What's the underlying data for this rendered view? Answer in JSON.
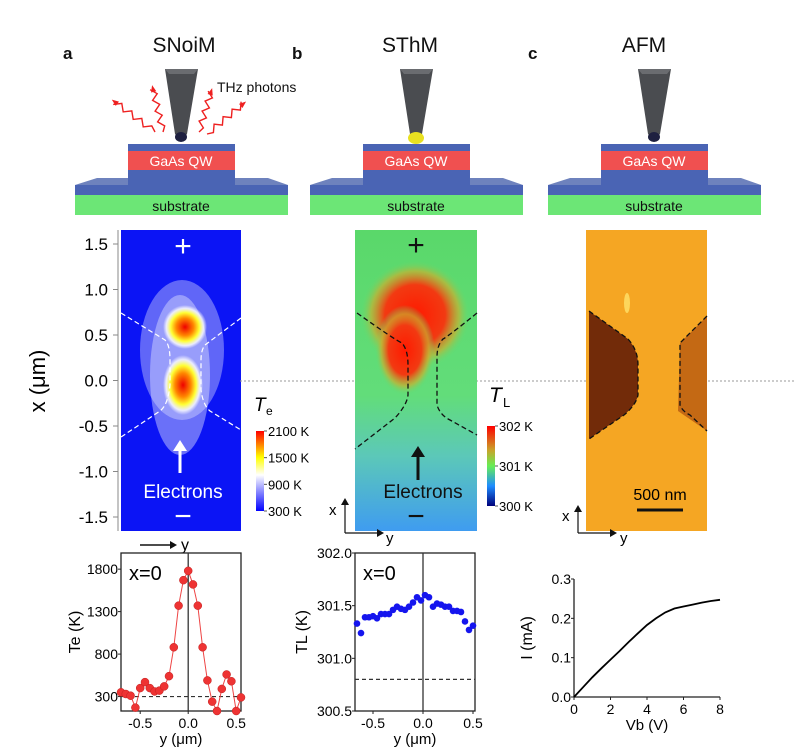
{
  "panels": [
    {
      "letter": "a",
      "title": "SNoiM",
      "photon_label": "THz photons",
      "qw_label": "GaAs QW",
      "substrate_label": "substrate",
      "tip_type": "plain"
    },
    {
      "letter": "b",
      "title": "SThM",
      "qw_label": "GaAs QW",
      "substrate_label": "substrate",
      "tip_type": "thermal"
    },
    {
      "letter": "c",
      "title": "AFM",
      "qw_label": "GaAs QW",
      "substrate_label": "substrate",
      "tip_type": "plain"
    }
  ],
  "maps": {
    "yaxis_label": "x (μm)",
    "yaxis_ticks": [
      "1.5",
      "1.0",
      "0.5",
      "0.0",
      "-0.5",
      "-1.0",
      "-1.5"
    ],
    "yaxis_tick_values": [
      1.5,
      1.0,
      0.5,
      0.0,
      -0.5,
      -1.0,
      -1.5
    ],
    "plus_sign": "+",
    "minus_sign": "−",
    "electrons_label": "Electrons",
    "axis_x": "x",
    "axis_y": "y",
    "te_colorbar": {
      "label": "T",
      "sub": "e",
      "ticks": [
        "2100 K",
        "1500 K",
        "900 K",
        "300 K"
      ],
      "colors": [
        "#ff0000",
        "#ffff00",
        "#ffffff",
        "#0000ff"
      ]
    },
    "tl_colorbar": {
      "label": "T",
      "sub": "L",
      "ticks": [
        "302 K",
        "301 K",
        "300 K"
      ],
      "colors": [
        "#ff0000",
        "#66ee55",
        "#1e5cff",
        "#00007a"
      ]
    },
    "scalebar_label": "500 nm",
    "colors": {
      "snoim_bg": "#0b14f5",
      "sthm_bg": "#54d67a",
      "afm_bg": "#f5a623"
    }
  },
  "chart_data": [
    {
      "type": "line",
      "title": "x=0",
      "xlabel": "y (μm)",
      "ylabel": "Te (K)",
      "xlim": [
        -0.7,
        0.55
      ],
      "ylim": [
        130,
        1990
      ],
      "xticks": [
        -0.5,
        0.0,
        0.5
      ],
      "xtick_labels": [
        "-0.5",
        "0.0",
        "0.5"
      ],
      "yticks": [
        300,
        800,
        1300,
        1800
      ],
      "ytick_labels": [
        "300",
        "800",
        "1300",
        "1800"
      ],
      "reference_line": 300,
      "marker_color": "#ee3333",
      "x": [
        -0.7,
        -0.65,
        -0.6,
        -0.55,
        -0.5,
        -0.45,
        -0.4,
        -0.35,
        -0.3,
        -0.25,
        -0.2,
        -0.15,
        -0.1,
        -0.05,
        0.0,
        0.05,
        0.1,
        0.15,
        0.2,
        0.25,
        0.3,
        0.35,
        0.4,
        0.45,
        0.5,
        0.55
      ],
      "y": [
        350,
        330,
        310,
        170,
        400,
        470,
        400,
        360,
        370,
        420,
        540,
        880,
        1370,
        1670,
        1780,
        1620,
        1370,
        880,
        490,
        240,
        130,
        390,
        560,
        480,
        60,
        290
      ]
    },
    {
      "type": "scatter",
      "title": "x=0",
      "xlabel": "y (μm)",
      "ylabel": "TL (K)",
      "xlim": [
        -0.68,
        0.52
      ],
      "ylim": [
        300.5,
        302.0
      ],
      "xticks": [
        -0.5,
        0.0,
        0.5
      ],
      "xtick_labels": [
        "-0.5",
        "0.0",
        "0.5"
      ],
      "yticks": [
        300.5,
        301.0,
        301.5,
        302.0
      ],
      "ytick_labels": [
        "300.5",
        "301.0",
        "301.5",
        "302.0"
      ],
      "reference_line": 300.8,
      "marker_color": "#1515ee",
      "x": [
        -0.66,
        -0.62,
        -0.58,
        -0.54,
        -0.5,
        -0.46,
        -0.42,
        -0.38,
        -0.34,
        -0.3,
        -0.26,
        -0.22,
        -0.18,
        -0.14,
        -0.1,
        -0.06,
        -0.02,
        0.02,
        0.06,
        0.1,
        0.14,
        0.18,
        0.22,
        0.26,
        0.3,
        0.34,
        0.38,
        0.42,
        0.46,
        0.5
      ],
      "y": [
        301.33,
        301.24,
        301.39,
        301.39,
        301.4,
        301.38,
        301.42,
        301.42,
        301.42,
        301.46,
        301.49,
        301.47,
        301.46,
        301.49,
        301.53,
        301.58,
        301.55,
        301.6,
        301.58,
        301.49,
        301.52,
        301.51,
        301.49,
        301.49,
        301.45,
        301.45,
        301.44,
        301.35,
        301.27,
        301.31
      ]
    },
    {
      "type": "line",
      "title": "",
      "xlabel": "Vb (V)",
      "ylabel": "I (mA)",
      "xlim": [
        0,
        8
      ],
      "ylim": [
        0,
        0.3
      ],
      "xticks": [
        0,
        2,
        4,
        6,
        8
      ],
      "xtick_labels": [
        "0",
        "2",
        "4",
        "6",
        "8"
      ],
      "yticks": [
        0.0,
        0.1,
        0.2,
        0.3
      ],
      "ytick_labels": [
        "0.0",
        "0.1",
        "0.2",
        "0.3"
      ],
      "line_color": "#000000",
      "x": [
        0,
        0.5,
        1,
        1.5,
        2,
        2.5,
        3,
        3.5,
        4,
        4.5,
        5,
        5.5,
        6,
        6.5,
        7,
        7.5,
        8
      ],
      "y": [
        0,
        0.025,
        0.05,
        0.073,
        0.095,
        0.117,
        0.14,
        0.162,
        0.183,
        0.2,
        0.215,
        0.225,
        0.23,
        0.235,
        0.24,
        0.244,
        0.247
      ]
    }
  ]
}
